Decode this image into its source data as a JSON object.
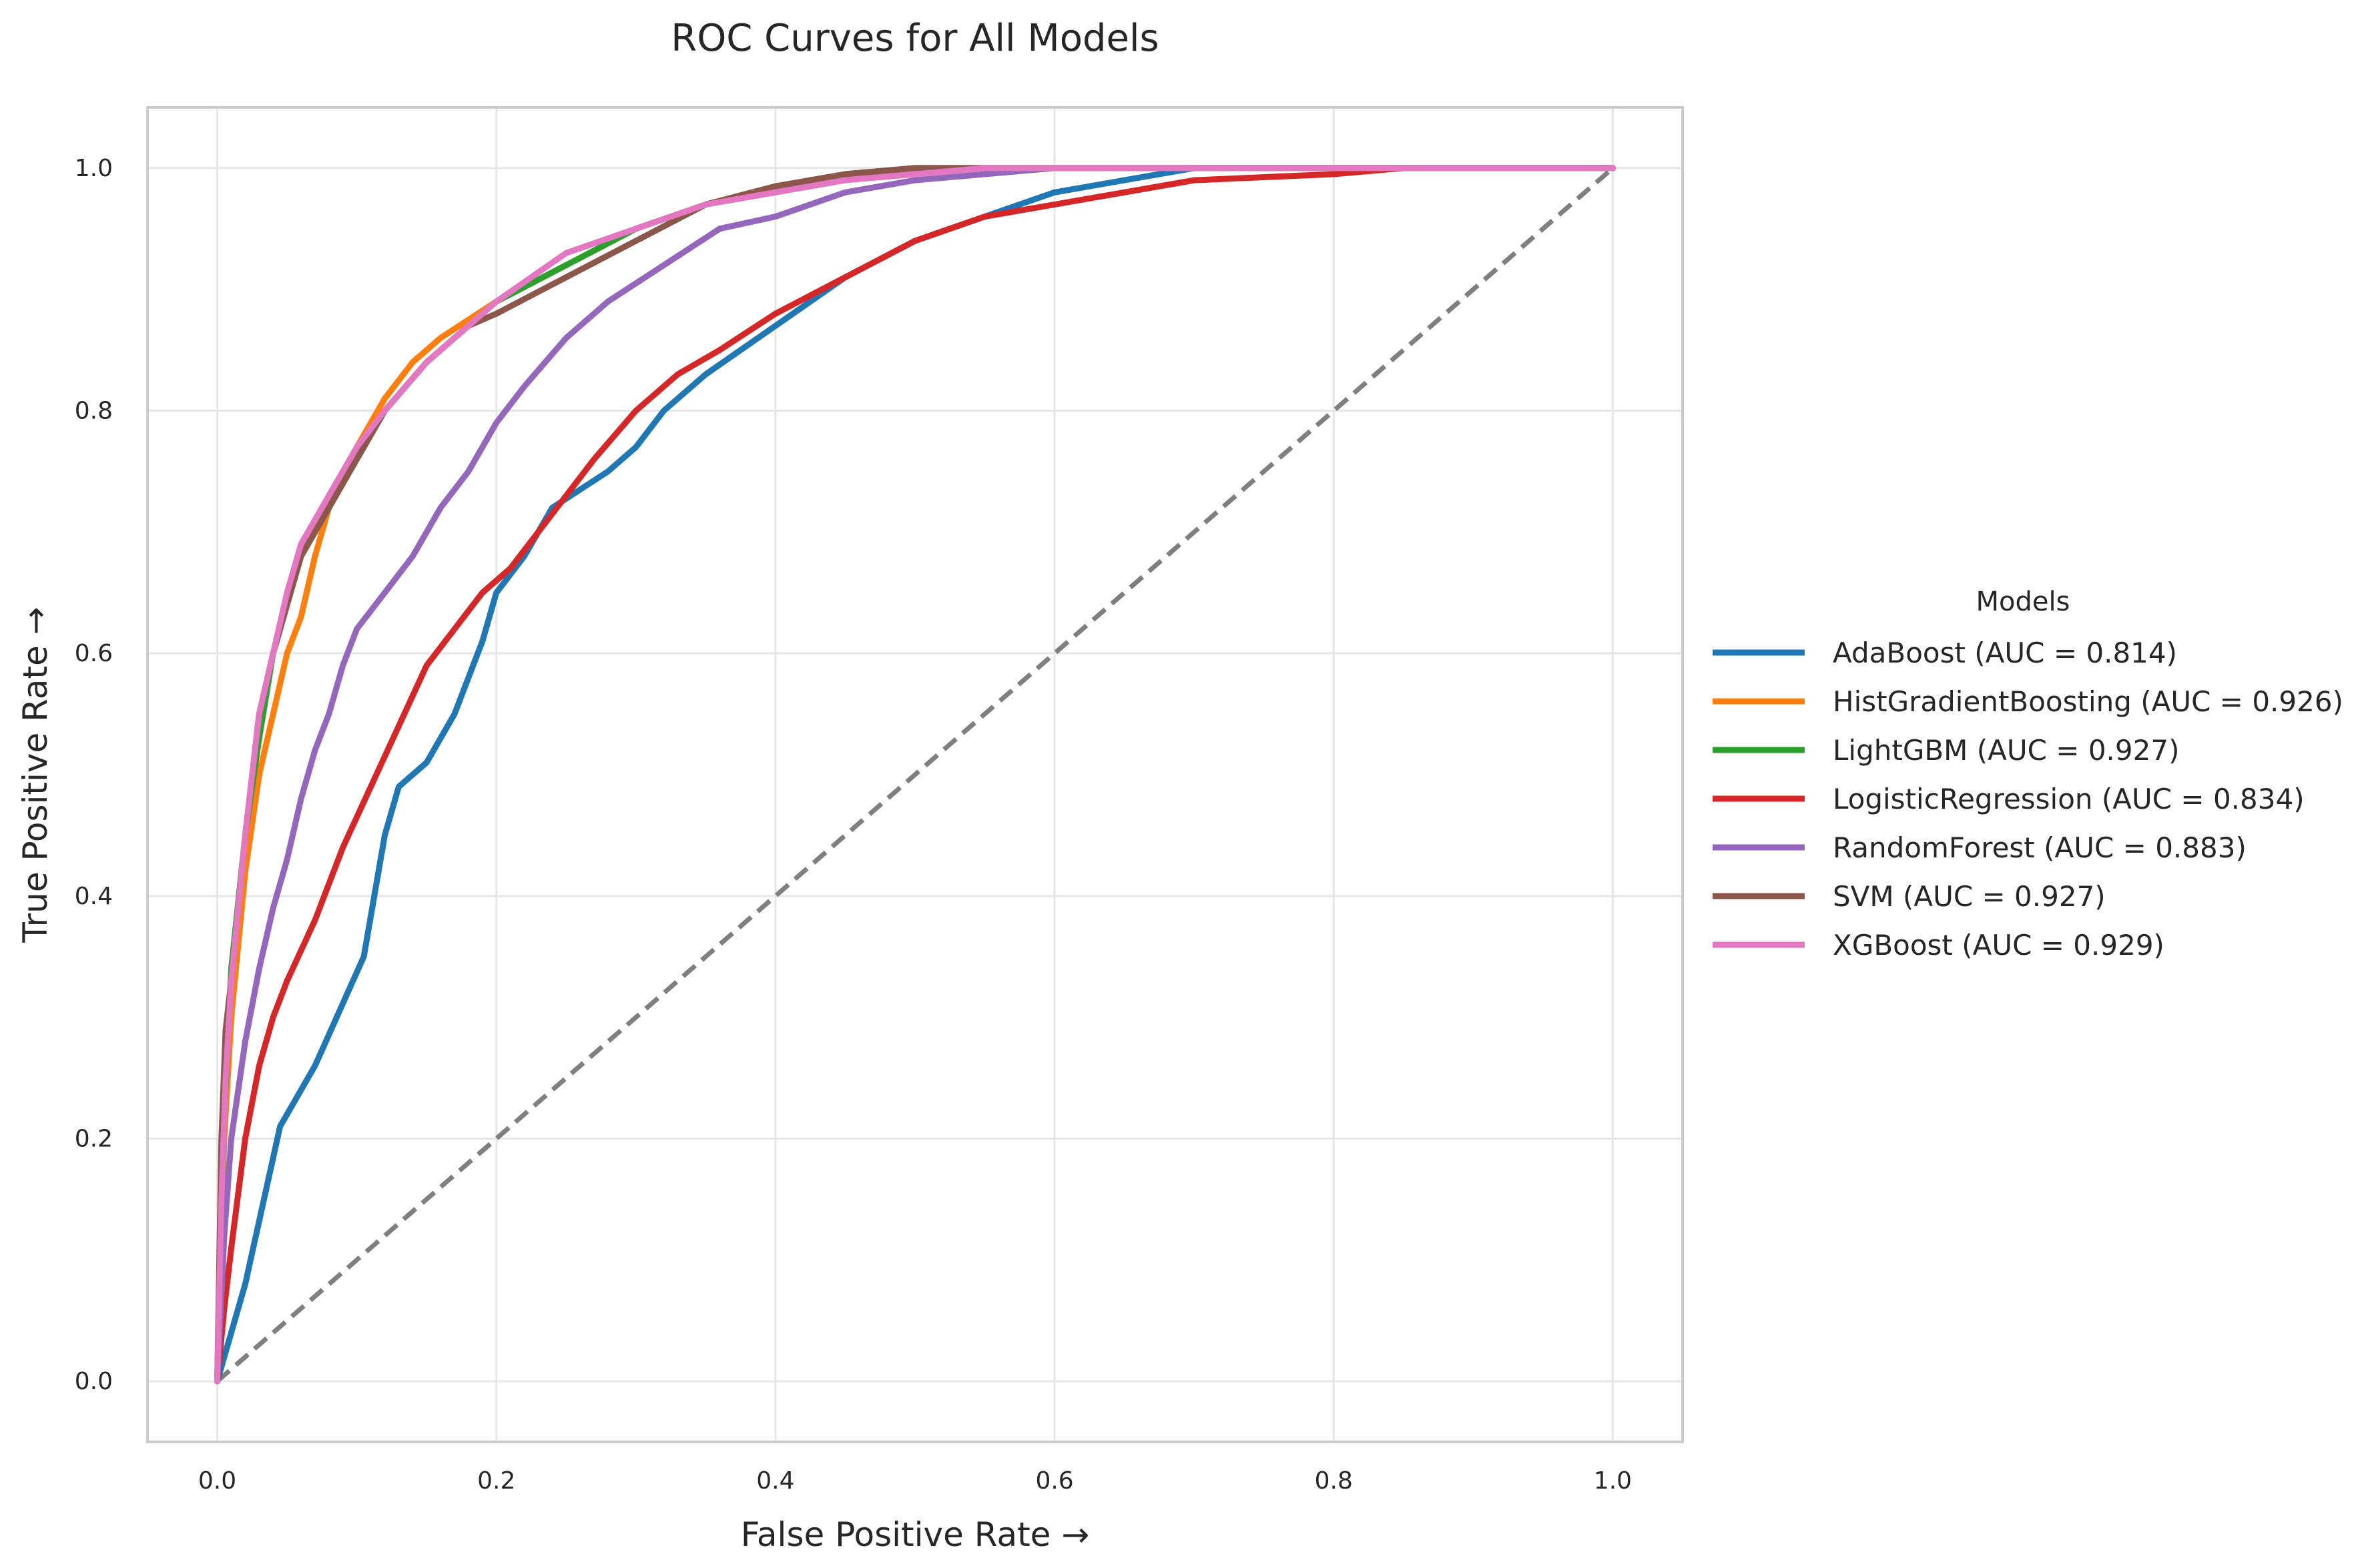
{
  "chart_data": {
    "type": "line",
    "title": "ROC Curves for All Models",
    "xlabel": "False Positive Rate →",
    "ylabel": "True Positive Rate →",
    "xlim": [
      -0.05,
      1.05
    ],
    "ylim": [
      -0.05,
      1.05
    ],
    "xticks": [
      "0.0",
      "0.2",
      "0.4",
      "0.6",
      "0.8",
      "1.0"
    ],
    "yticks": [
      "0.0",
      "0.2",
      "0.4",
      "0.6",
      "0.8",
      "1.0"
    ],
    "grid": true,
    "legend": {
      "title": "Models",
      "placement": "outside-right"
    },
    "diagonal": {
      "style": "dashed",
      "color": "#7f7f7f",
      "points": [
        [
          0,
          0
        ],
        [
          1,
          1
        ]
      ]
    },
    "series": [
      {
        "name": "AdaBoost (AUC = 0.814)",
        "color": "#1f77b4",
        "points": [
          [
            0,
            0
          ],
          [
            0.02,
            0.08
          ],
          [
            0.045,
            0.21
          ],
          [
            0.07,
            0.26
          ],
          [
            0.105,
            0.35
          ],
          [
            0.12,
            0.45
          ],
          [
            0.13,
            0.49
          ],
          [
            0.15,
            0.51
          ],
          [
            0.17,
            0.55
          ],
          [
            0.19,
            0.61
          ],
          [
            0.2,
            0.65
          ],
          [
            0.22,
            0.68
          ],
          [
            0.24,
            0.72
          ],
          [
            0.28,
            0.75
          ],
          [
            0.3,
            0.77
          ],
          [
            0.32,
            0.8
          ],
          [
            0.35,
            0.83
          ],
          [
            0.4,
            0.87
          ],
          [
            0.45,
            0.91
          ],
          [
            0.5,
            0.94
          ],
          [
            0.55,
            0.96
          ],
          [
            0.6,
            0.98
          ],
          [
            0.65,
            0.99
          ],
          [
            0.7,
            1.0
          ],
          [
            1,
            1
          ]
        ]
      },
      {
        "name": "HistGradientBoosting (AUC = 0.926)",
        "color": "#ff7f0e",
        "points": [
          [
            0,
            0
          ],
          [
            0.005,
            0.2
          ],
          [
            0.01,
            0.3
          ],
          [
            0.02,
            0.42
          ],
          [
            0.03,
            0.5
          ],
          [
            0.04,
            0.55
          ],
          [
            0.05,
            0.6
          ],
          [
            0.06,
            0.63
          ],
          [
            0.07,
            0.68
          ],
          [
            0.08,
            0.72
          ],
          [
            0.1,
            0.77
          ],
          [
            0.12,
            0.81
          ],
          [
            0.14,
            0.84
          ],
          [
            0.16,
            0.86
          ],
          [
            0.2,
            0.89
          ],
          [
            0.25,
            0.92
          ],
          [
            0.3,
            0.95
          ],
          [
            0.35,
            0.97
          ],
          [
            0.4,
            0.985
          ],
          [
            0.45,
            0.995
          ],
          [
            0.5,
            1.0
          ],
          [
            1,
            1
          ]
        ]
      },
      {
        "name": "LightGBM (AUC = 0.927)",
        "color": "#2ca02c",
        "points": [
          [
            0,
            0
          ],
          [
            0.005,
            0.22
          ],
          [
            0.01,
            0.34
          ],
          [
            0.02,
            0.45
          ],
          [
            0.03,
            0.53
          ],
          [
            0.04,
            0.6
          ],
          [
            0.05,
            0.64
          ],
          [
            0.06,
            0.68
          ],
          [
            0.08,
            0.72
          ],
          [
            0.1,
            0.76
          ],
          [
            0.12,
            0.8
          ],
          [
            0.15,
            0.84
          ],
          [
            0.18,
            0.87
          ],
          [
            0.2,
            0.89
          ],
          [
            0.25,
            0.92
          ],
          [
            0.3,
            0.95
          ],
          [
            0.35,
            0.97
          ],
          [
            0.4,
            0.985
          ],
          [
            0.45,
            0.995
          ],
          [
            0.5,
            1.0
          ],
          [
            1,
            1
          ]
        ]
      },
      {
        "name": "LogisticRegression (AUC = 0.834)",
        "color": "#d62728",
        "points": [
          [
            0,
            0
          ],
          [
            0.005,
            0.06
          ],
          [
            0.01,
            0.11
          ],
          [
            0.02,
            0.2
          ],
          [
            0.03,
            0.26
          ],
          [
            0.04,
            0.3
          ],
          [
            0.05,
            0.33
          ],
          [
            0.07,
            0.38
          ],
          [
            0.09,
            0.44
          ],
          [
            0.11,
            0.49
          ],
          [
            0.13,
            0.54
          ],
          [
            0.15,
            0.59
          ],
          [
            0.17,
            0.62
          ],
          [
            0.19,
            0.65
          ],
          [
            0.21,
            0.67
          ],
          [
            0.23,
            0.7
          ],
          [
            0.25,
            0.73
          ],
          [
            0.27,
            0.76
          ],
          [
            0.3,
            0.8
          ],
          [
            0.33,
            0.83
          ],
          [
            0.36,
            0.85
          ],
          [
            0.4,
            0.88
          ],
          [
            0.45,
            0.91
          ],
          [
            0.5,
            0.94
          ],
          [
            0.55,
            0.96
          ],
          [
            0.6,
            0.97
          ],
          [
            0.65,
            0.98
          ],
          [
            0.7,
            0.99
          ],
          [
            0.8,
            0.995
          ],
          [
            0.85,
            1.0
          ],
          [
            1,
            1
          ]
        ]
      },
      {
        "name": "RandomForest (AUC = 0.883)",
        "color": "#9467bd",
        "points": [
          [
            0,
            0
          ],
          [
            0.005,
            0.12
          ],
          [
            0.01,
            0.2
          ],
          [
            0.02,
            0.28
          ],
          [
            0.03,
            0.34
          ],
          [
            0.04,
            0.39
          ],
          [
            0.05,
            0.43
          ],
          [
            0.06,
            0.48
          ],
          [
            0.07,
            0.52
          ],
          [
            0.08,
            0.55
          ],
          [
            0.09,
            0.59
          ],
          [
            0.1,
            0.62
          ],
          [
            0.12,
            0.65
          ],
          [
            0.14,
            0.68
          ],
          [
            0.16,
            0.72
          ],
          [
            0.18,
            0.75
          ],
          [
            0.2,
            0.79
          ],
          [
            0.22,
            0.82
          ],
          [
            0.25,
            0.86
          ],
          [
            0.28,
            0.89
          ],
          [
            0.32,
            0.92
          ],
          [
            0.36,
            0.95
          ],
          [
            0.4,
            0.96
          ],
          [
            0.45,
            0.98
          ],
          [
            0.5,
            0.99
          ],
          [
            0.55,
            0.995
          ],
          [
            0.6,
            1.0
          ],
          [
            1,
            1
          ]
        ]
      },
      {
        "name": "SVM (AUC = 0.927)",
        "color": "#8c564b",
        "points": [
          [
            0,
            0
          ],
          [
            0.003,
            0.2
          ],
          [
            0.006,
            0.29
          ],
          [
            0.01,
            0.33
          ],
          [
            0.02,
            0.45
          ],
          [
            0.03,
            0.55
          ],
          [
            0.04,
            0.6
          ],
          [
            0.05,
            0.64
          ],
          [
            0.06,
            0.68
          ],
          [
            0.08,
            0.72
          ],
          [
            0.1,
            0.76
          ],
          [
            0.12,
            0.8
          ],
          [
            0.15,
            0.84
          ],
          [
            0.18,
            0.87
          ],
          [
            0.2,
            0.88
          ],
          [
            0.25,
            0.91
          ],
          [
            0.3,
            0.94
          ],
          [
            0.35,
            0.97
          ],
          [
            0.4,
            0.985
          ],
          [
            0.45,
            0.995
          ],
          [
            0.5,
            1.0
          ],
          [
            1,
            1
          ]
        ]
      },
      {
        "name": "XGBoost (AUC = 0.929)",
        "color": "#e377c2",
        "points": [
          [
            0,
            0
          ],
          [
            0.003,
            0.15
          ],
          [
            0.006,
            0.25
          ],
          [
            0.01,
            0.33
          ],
          [
            0.02,
            0.45
          ],
          [
            0.03,
            0.55
          ],
          [
            0.04,
            0.6
          ],
          [
            0.05,
            0.65
          ],
          [
            0.06,
            0.69
          ],
          [
            0.08,
            0.73
          ],
          [
            0.1,
            0.77
          ],
          [
            0.12,
            0.8
          ],
          [
            0.15,
            0.84
          ],
          [
            0.18,
            0.87
          ],
          [
            0.2,
            0.89
          ],
          [
            0.25,
            0.93
          ],
          [
            0.3,
            0.95
          ],
          [
            0.35,
            0.97
          ],
          [
            0.4,
            0.98
          ],
          [
            0.45,
            0.99
          ],
          [
            0.5,
            0.995
          ],
          [
            0.55,
            1.0
          ],
          [
            1,
            1
          ]
        ]
      }
    ]
  }
}
